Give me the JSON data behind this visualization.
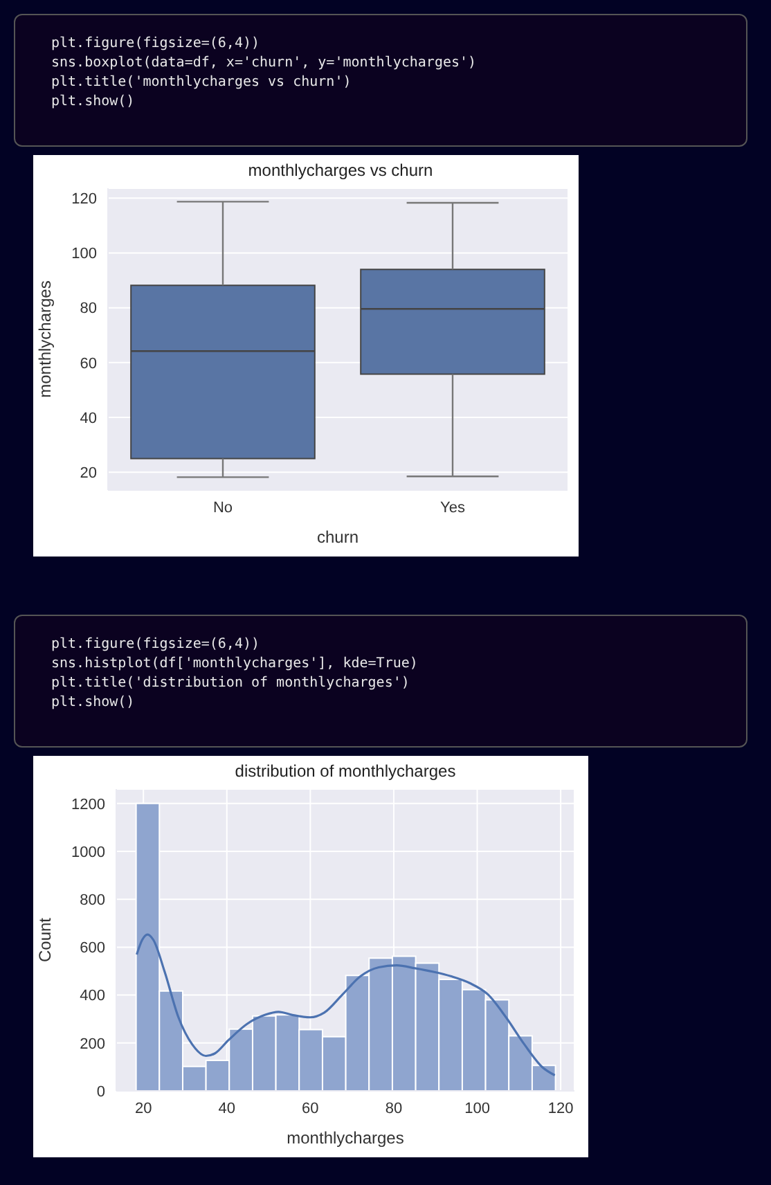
{
  "chart_data": [
    {
      "type": "box",
      "title": "monthlycharges vs churn",
      "xlabel": "churn",
      "ylabel": "monthlycharges",
      "categories": [
        "No",
        "Yes"
      ],
      "color": "#5975a4",
      "boxes": [
        {
          "low": 18.2,
          "q1": 25,
          "median": 64.2,
          "q3": 88.2,
          "high": 118.7
        },
        {
          "low": 18.5,
          "q1": 55.8,
          "median": 79.6,
          "q3": 94,
          "high": 118.3
        }
      ],
      "ylim": [
        13.5,
        123.6
      ],
      "yticks": [
        20,
        40,
        60,
        80,
        100,
        120
      ],
      "grid": "y",
      "annotations": [
        "plt.figure(figsize=(6,4))",
        "sns.boxplot(data=df, x='churn', y='monthlycharges')",
        "plt.title('monthlycharges vs churn')",
        "plt.show()"
      ]
    },
    {
      "type": "histogram",
      "title": "distribution of monthlycharges",
      "xlabel": "monthlycharges",
      "ylabel": "Count",
      "color": "#8fa5cf",
      "bins": [
        18.25,
        23.83,
        29.42,
        35,
        40.58,
        46.17,
        51.75,
        57.33,
        62.92,
        68.5,
        74.08,
        79.67,
        85.25,
        90.83,
        96.42,
        102,
        107.58,
        113.17,
        118.75
      ],
      "values": [
        1200,
        417,
        102,
        127,
        258,
        313,
        317,
        256,
        226,
        482,
        554,
        562,
        533,
        465,
        423,
        380,
        230,
        106
      ],
      "series": [
        {
          "type": "line",
          "color": "#4c72b0",
          "x": [
            18.4,
            19.7,
            21,
            22.4,
            25.1,
            28.4,
            31.7,
            35,
            37.1,
            40.4,
            44.8,
            49.1,
            52.4,
            55.7,
            60,
            63.3,
            67.7,
            72,
            76.4,
            80.7,
            85.1,
            89.5,
            93.8,
            98.2,
            102.6,
            106.9,
            111.3,
            115.6,
            118.6
          ],
          "values": [
            569,
            630,
            653,
            630,
            497,
            307,
            194,
            146,
            156,
            212,
            279,
            317,
            330,
            317,
            307,
            326,
            402,
            478,
            516,
            524,
            512,
            497,
            478,
            450,
            402,
            307,
            194,
            99,
            65
          ]
        }
      ],
      "xlim": [
        13.5,
        123.3
      ],
      "xticks": [
        20,
        40,
        60,
        80,
        100,
        120
      ],
      "ylim": [
        0,
        1260
      ],
      "yticks": [
        0,
        200,
        400,
        600,
        800,
        1000,
        1200
      ],
      "grid": true,
      "annotations": [
        "plt.figure(figsize=(6,4))",
        "sns.histplot(df['monthlycharges'], kde=True)",
        "plt.title('distribution of monthlycharges')",
        "plt.show()"
      ]
    }
  ]
}
